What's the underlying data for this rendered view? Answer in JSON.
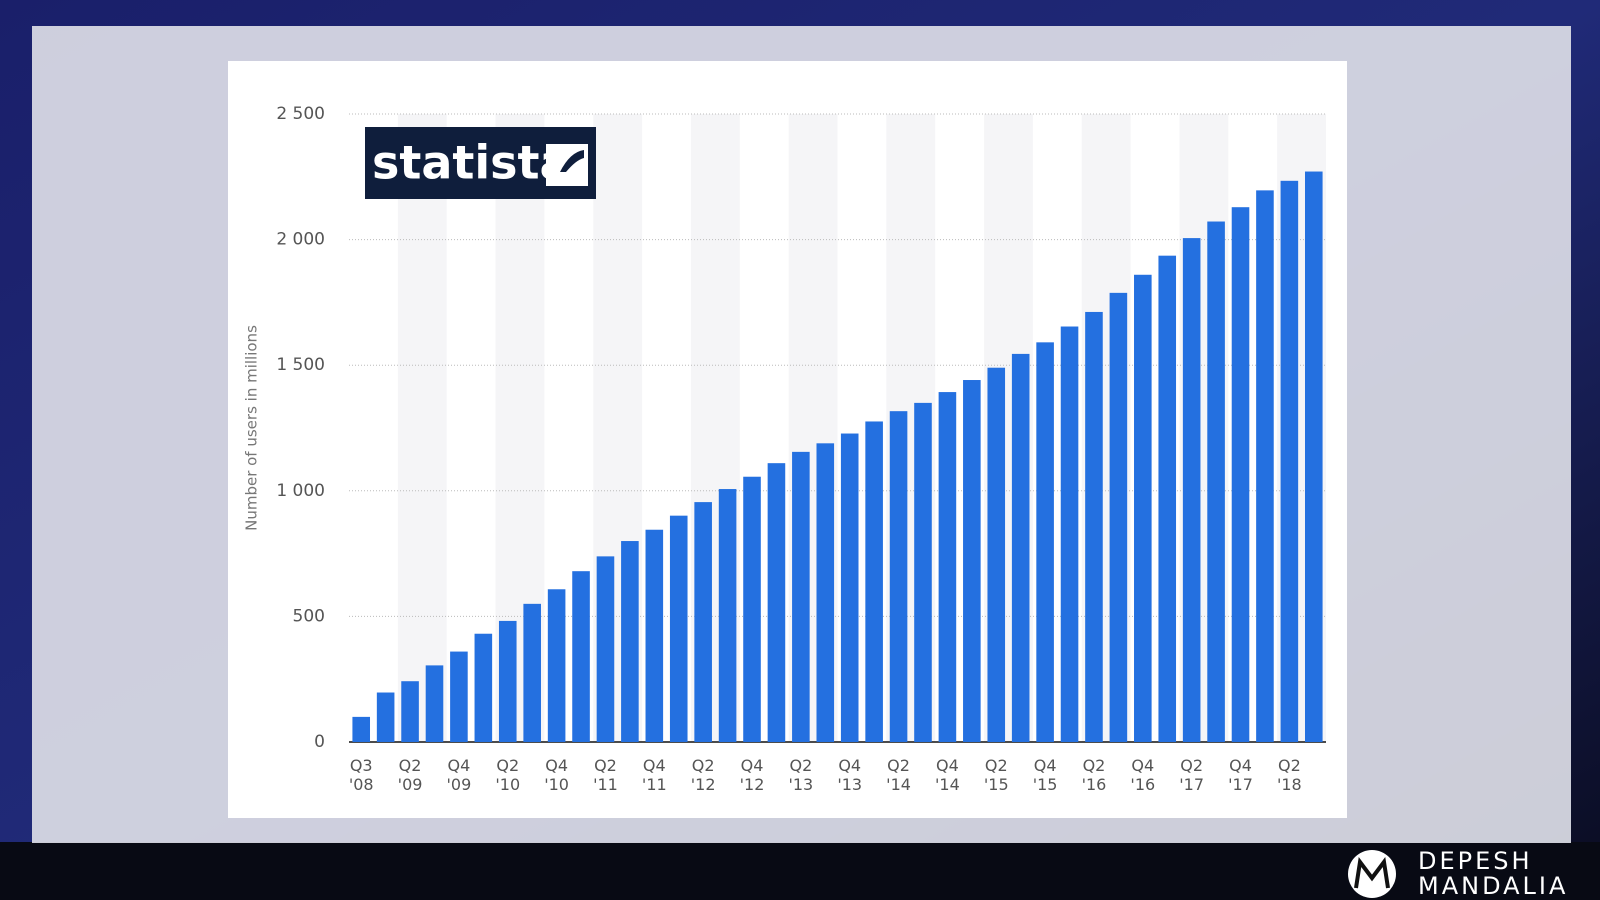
{
  "chart_data": {
    "type": "bar",
    "logo": "statista",
    "ylabel": "Number of users in millions",
    "categories": [
      "Q3\n'08",
      null,
      "Q2\n'09",
      null,
      "Q4\n'09",
      null,
      "Q2\n'10",
      null,
      "Q4\n'10",
      null,
      "Q2\n'11",
      null,
      "Q4\n'11",
      null,
      "Q2\n'12",
      null,
      "Q4\n'12",
      null,
      "Q2\n'13",
      null,
      "Q4\n'13",
      null,
      "Q2\n'14",
      null,
      "Q4\n'14",
      null,
      "Q2\n'15",
      null,
      "Q4\n'15",
      null,
      "Q2\n'16",
      null,
      "Q4\n'16",
      null,
      "Q2\n'17",
      null,
      "Q4\n'17",
      null,
      "Q2\n'18",
      null
    ],
    "values": [
      100,
      197,
      242,
      305,
      360,
      431,
      482,
      550,
      608,
      680,
      739,
      800,
      845,
      901,
      955,
      1007,
      1056,
      1110,
      1155,
      1189,
      1228,
      1276,
      1317,
      1350,
      1393,
      1441,
      1490,
      1545,
      1591,
      1654,
      1712,
      1788,
      1860,
      1936,
      2006,
      2072,
      2129,
      2196,
      2234,
      2271
    ],
    "color": "#2470e0",
    "ylim": [
      0,
      2500
    ],
    "yticks": [
      0,
      500,
      {
        "value": 1000,
        "label": "1 000"
      },
      {
        "value": 1500,
        "label": "1 500"
      },
      {
        "value": 2000,
        "label": "2 000"
      },
      {
        "value": 2500,
        "label": "2 500"
      }
    ],
    "grid": true
  },
  "branding": {
    "line1": "DEPESH",
    "line2": "MANDALIA"
  }
}
